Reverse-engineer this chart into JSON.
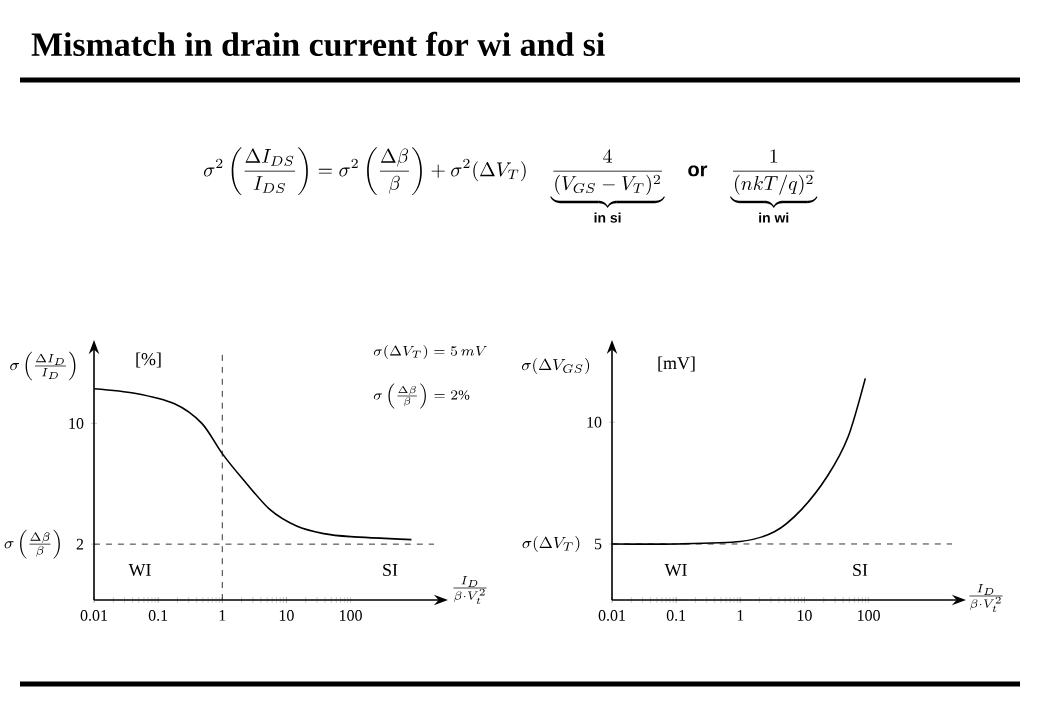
{
  "chart_data": [
    {
      "type": "line",
      "title": "Mismatch in drain current for wi and si",
      "xlabel": "\\frac{I_D}{\\beta\\cdot V_t^2}",
      "ylabel": "\\sigma\\left(\\frac{\\Delta I_D}{I_D}\\right)",
      "annotations": [
        "\\sigma^2\\left(\\frac{\\Delta I_{DS}}{I_{DS}}\\right) = \\sigma^2\\left(\\frac{\\Delta\\beta}{\\beta}\\right) + \\sigma^2(\\Delta V_T)\\quad\\underbrace{\\frac{4}{(V_{GS}-V_T)^2}}_{\\textbf{in si}}\\quad\\textbf{or}\\quad\\underbrace{\\frac{1}{(nkT/q)^2}}_{\\textbf{in wi}}",
        "[%]",
        "WI",
        "SI",
        "\\sigma(\\Delta V_T) = 5\\,mV",
        "\\sigma\\left(\\frac{\\Delta\\beta}{\\beta}\\right) = 2\\%"
      ],
      "log": "x",
      "xlim": [
        0.01,
        2000
      ],
      "ylim": [
        -1.7,
        14.6
      ],
      "xticks": [
        0.01,
        0.1,
        1,
        10,
        100
      ],
      "yticks": [
        2,
        10
      ],
      "marker": "none",
      "x": [
        0.01,
        0.043,
        0.18,
        0.48,
        1,
        2.1,
        5.5,
        14.4,
        38,
        100,
        890
      ],
      "series": [
        {
          "color": "#000000",
          "values": [
            12.3,
            12.0,
            11.3,
            10.0,
            8.0,
            6.3,
            4.3,
            3.2,
            2.7,
            2.5,
            2.3
          ]
        }
      ],
      "ref_lines": [
        {
          "axis": "y",
          "value": 2,
          "label": "\\sigma\\left(\\frac{\\Delta\\beta}{\\beta}\\right)",
          "line_style": "dashed"
        },
        {
          "axis": "x",
          "value": 1,
          "line_style": "dashed"
        }
      ]
    },
    {
      "type": "line",
      "xlabel": "\\frac{I_D}{\\beta\\cdot V_t^2}",
      "ylabel": "\\sigma(\\Delta V_{GS})",
      "annotations": [
        "[mV]",
        "WI",
        "SI"
      ],
      "log": "x",
      "xlim": [
        0.01,
        2000
      ],
      "ylim": [
        2.7,
        12.8
      ],
      "xticks": [
        0.01,
        0.1,
        1,
        10,
        100
      ],
      "yticks": [
        5,
        10
      ],
      "marker": "none",
      "x": [
        0.01,
        0.1,
        1,
        3.4,
        8.9,
        23,
        48,
        89
      ],
      "series": [
        {
          "color": "#000000",
          "values": [
            5,
            5,
            5.1,
            5.5,
            6.4,
            7.8,
            9.4,
            11.8
          ]
        }
      ],
      "ref_lines": [
        {
          "axis": "y",
          "value": 5,
          "label": "\\sigma(\\Delta V_T)",
          "line_style": "dashed"
        }
      ]
    }
  ]
}
